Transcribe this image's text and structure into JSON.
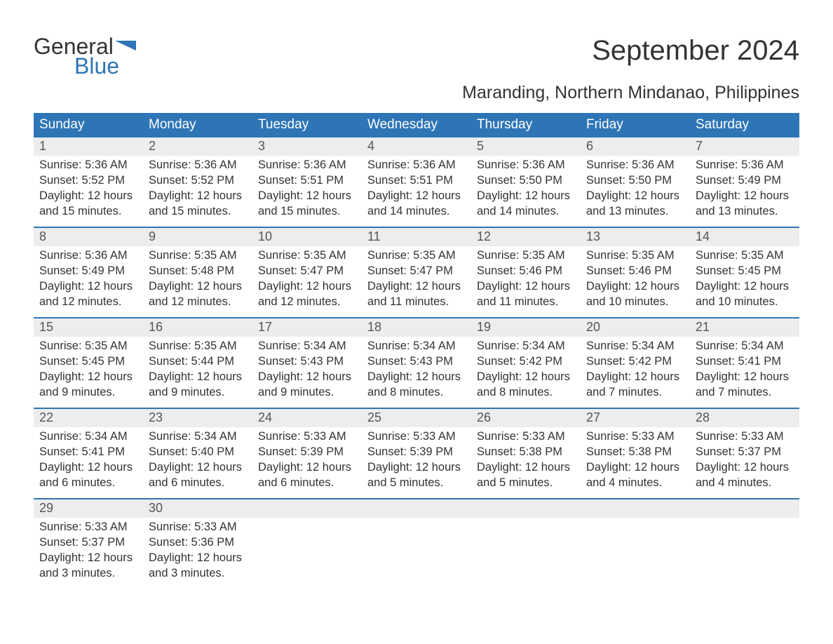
{
  "logo": {
    "word1": "General",
    "word2": "Blue",
    "brand_color": "#2e75b6"
  },
  "title": "September 2024",
  "subtitle": "Maranding, Northern Mindanao, Philippines",
  "colors": {
    "header_bg": "#2e75b6",
    "daynum_bg": "#ededed",
    "text": "#333333",
    "header_text": "#ffffff",
    "week_border": "#2e75b6",
    "page_bg": "#ffffff"
  },
  "fonts": {
    "title_size": 40,
    "subtitle_size": 25,
    "dayname_size": 19,
    "daynum_size": 18,
    "body_size": 16.5
  },
  "day_names": [
    "Sunday",
    "Monday",
    "Tuesday",
    "Wednesday",
    "Thursday",
    "Friday",
    "Saturday"
  ],
  "weeks": [
    [
      {
        "n": "1",
        "sunrise": "Sunrise: 5:36 AM",
        "sunset": "Sunset: 5:52 PM",
        "day1": "Daylight: 12 hours",
        "day2": "and 15 minutes."
      },
      {
        "n": "2",
        "sunrise": "Sunrise: 5:36 AM",
        "sunset": "Sunset: 5:52 PM",
        "day1": "Daylight: 12 hours",
        "day2": "and 15 minutes."
      },
      {
        "n": "3",
        "sunrise": "Sunrise: 5:36 AM",
        "sunset": "Sunset: 5:51 PM",
        "day1": "Daylight: 12 hours",
        "day2": "and 15 minutes."
      },
      {
        "n": "4",
        "sunrise": "Sunrise: 5:36 AM",
        "sunset": "Sunset: 5:51 PM",
        "day1": "Daylight: 12 hours",
        "day2": "and 14 minutes."
      },
      {
        "n": "5",
        "sunrise": "Sunrise: 5:36 AM",
        "sunset": "Sunset: 5:50 PM",
        "day1": "Daylight: 12 hours",
        "day2": "and 14 minutes."
      },
      {
        "n": "6",
        "sunrise": "Sunrise: 5:36 AM",
        "sunset": "Sunset: 5:50 PM",
        "day1": "Daylight: 12 hours",
        "day2": "and 13 minutes."
      },
      {
        "n": "7",
        "sunrise": "Sunrise: 5:36 AM",
        "sunset": "Sunset: 5:49 PM",
        "day1": "Daylight: 12 hours",
        "day2": "and 13 minutes."
      }
    ],
    [
      {
        "n": "8",
        "sunrise": "Sunrise: 5:36 AM",
        "sunset": "Sunset: 5:49 PM",
        "day1": "Daylight: 12 hours",
        "day2": "and 12 minutes."
      },
      {
        "n": "9",
        "sunrise": "Sunrise: 5:35 AM",
        "sunset": "Sunset: 5:48 PM",
        "day1": "Daylight: 12 hours",
        "day2": "and 12 minutes."
      },
      {
        "n": "10",
        "sunrise": "Sunrise: 5:35 AM",
        "sunset": "Sunset: 5:47 PM",
        "day1": "Daylight: 12 hours",
        "day2": "and 12 minutes."
      },
      {
        "n": "11",
        "sunrise": "Sunrise: 5:35 AM",
        "sunset": "Sunset: 5:47 PM",
        "day1": "Daylight: 12 hours",
        "day2": "and 11 minutes."
      },
      {
        "n": "12",
        "sunrise": "Sunrise: 5:35 AM",
        "sunset": "Sunset: 5:46 PM",
        "day1": "Daylight: 12 hours",
        "day2": "and 11 minutes."
      },
      {
        "n": "13",
        "sunrise": "Sunrise: 5:35 AM",
        "sunset": "Sunset: 5:46 PM",
        "day1": "Daylight: 12 hours",
        "day2": "and 10 minutes."
      },
      {
        "n": "14",
        "sunrise": "Sunrise: 5:35 AM",
        "sunset": "Sunset: 5:45 PM",
        "day1": "Daylight: 12 hours",
        "day2": "and 10 minutes."
      }
    ],
    [
      {
        "n": "15",
        "sunrise": "Sunrise: 5:35 AM",
        "sunset": "Sunset: 5:45 PM",
        "day1": "Daylight: 12 hours",
        "day2": "and 9 minutes."
      },
      {
        "n": "16",
        "sunrise": "Sunrise: 5:35 AM",
        "sunset": "Sunset: 5:44 PM",
        "day1": "Daylight: 12 hours",
        "day2": "and 9 minutes."
      },
      {
        "n": "17",
        "sunrise": "Sunrise: 5:34 AM",
        "sunset": "Sunset: 5:43 PM",
        "day1": "Daylight: 12 hours",
        "day2": "and 9 minutes."
      },
      {
        "n": "18",
        "sunrise": "Sunrise: 5:34 AM",
        "sunset": "Sunset: 5:43 PM",
        "day1": "Daylight: 12 hours",
        "day2": "and 8 minutes."
      },
      {
        "n": "19",
        "sunrise": "Sunrise: 5:34 AM",
        "sunset": "Sunset: 5:42 PM",
        "day1": "Daylight: 12 hours",
        "day2": "and 8 minutes."
      },
      {
        "n": "20",
        "sunrise": "Sunrise: 5:34 AM",
        "sunset": "Sunset: 5:42 PM",
        "day1": "Daylight: 12 hours",
        "day2": "and 7 minutes."
      },
      {
        "n": "21",
        "sunrise": "Sunrise: 5:34 AM",
        "sunset": "Sunset: 5:41 PM",
        "day1": "Daylight: 12 hours",
        "day2": "and 7 minutes."
      }
    ],
    [
      {
        "n": "22",
        "sunrise": "Sunrise: 5:34 AM",
        "sunset": "Sunset: 5:41 PM",
        "day1": "Daylight: 12 hours",
        "day2": "and 6 minutes."
      },
      {
        "n": "23",
        "sunrise": "Sunrise: 5:34 AM",
        "sunset": "Sunset: 5:40 PM",
        "day1": "Daylight: 12 hours",
        "day2": "and 6 minutes."
      },
      {
        "n": "24",
        "sunrise": "Sunrise: 5:33 AM",
        "sunset": "Sunset: 5:39 PM",
        "day1": "Daylight: 12 hours",
        "day2": "and 6 minutes."
      },
      {
        "n": "25",
        "sunrise": "Sunrise: 5:33 AM",
        "sunset": "Sunset: 5:39 PM",
        "day1": "Daylight: 12 hours",
        "day2": "and 5 minutes."
      },
      {
        "n": "26",
        "sunrise": "Sunrise: 5:33 AM",
        "sunset": "Sunset: 5:38 PM",
        "day1": "Daylight: 12 hours",
        "day2": "and 5 minutes."
      },
      {
        "n": "27",
        "sunrise": "Sunrise: 5:33 AM",
        "sunset": "Sunset: 5:38 PM",
        "day1": "Daylight: 12 hours",
        "day2": "and 4 minutes."
      },
      {
        "n": "28",
        "sunrise": "Sunrise: 5:33 AM",
        "sunset": "Sunset: 5:37 PM",
        "day1": "Daylight: 12 hours",
        "day2": "and 4 minutes."
      }
    ],
    [
      {
        "n": "29",
        "sunrise": "Sunrise: 5:33 AM",
        "sunset": "Sunset: 5:37 PM",
        "day1": "Daylight: 12 hours",
        "day2": "and 3 minutes."
      },
      {
        "n": "30",
        "sunrise": "Sunrise: 5:33 AM",
        "sunset": "Sunset: 5:36 PM",
        "day1": "Daylight: 12 hours",
        "day2": "and 3 minutes."
      },
      {
        "n": "",
        "sunrise": "",
        "sunset": "",
        "day1": "",
        "day2": ""
      },
      {
        "n": "",
        "sunrise": "",
        "sunset": "",
        "day1": "",
        "day2": ""
      },
      {
        "n": "",
        "sunrise": "",
        "sunset": "",
        "day1": "",
        "day2": ""
      },
      {
        "n": "",
        "sunrise": "",
        "sunset": "",
        "day1": "",
        "day2": ""
      },
      {
        "n": "",
        "sunrise": "",
        "sunset": "",
        "day1": "",
        "day2": ""
      }
    ]
  ]
}
